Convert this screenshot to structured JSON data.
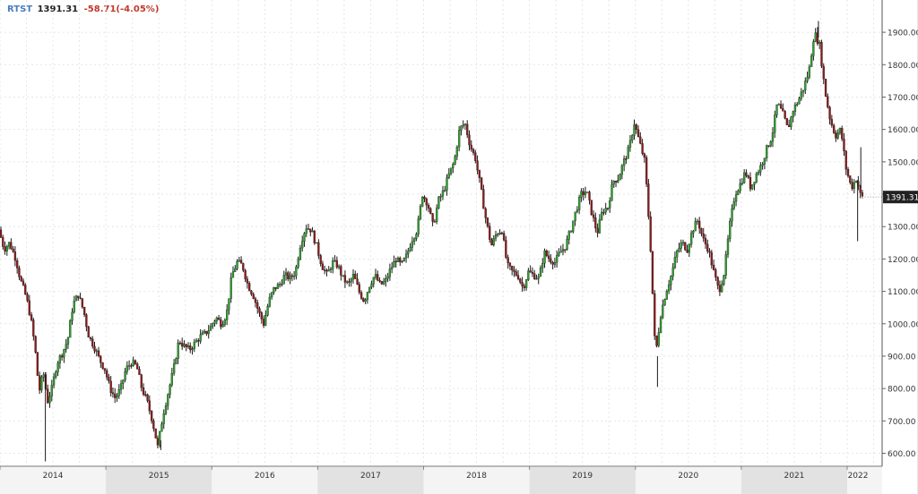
{
  "header": {
    "ticker": "RTST",
    "last_price": "1391.31",
    "change": "-58.71",
    "change_percent": "(-4.05%)"
  },
  "price_tag": "1391.31",
  "colors": {
    "up": "#2e9e2e",
    "down": "#8b1a1a",
    "ticker": "#4a7cc0",
    "change": "#c0392b",
    "grid": "#e6e6e6",
    "axis_text": "#333333",
    "year_band": "#e2e2e2",
    "tag_bg": "#222222"
  },
  "chart_data": {
    "type": "candlestick",
    "title": "",
    "grid": true,
    "y_axis_position": "right",
    "ylim": [
      560,
      1950
    ],
    "y_ticks": [
      "600.00",
      "700.00",
      "800.00",
      "900.00",
      "1000.00",
      "1100.00",
      "1200.00",
      "1300.00",
      "1400.00",
      "1500.00",
      "1600.00",
      "1700.00",
      "1800.00",
      "1900.00"
    ],
    "x_start": 2014.0,
    "x_end": 2022.33,
    "x_ticks": [
      "2014",
      "2015",
      "2016",
      "2017",
      "2018",
      "2019",
      "2020",
      "2021",
      "2022"
    ],
    "anchors": [
      [
        2014.0,
        1290
      ],
      [
        2014.05,
        1230
      ],
      [
        2014.1,
        1250
      ],
      [
        2014.16,
        1200
      ],
      [
        2014.2,
        1140
      ],
      [
        2014.26,
        1080
      ],
      [
        2014.3,
        1020
      ],
      [
        2014.34,
        930
      ],
      [
        2014.38,
        790
      ],
      [
        2014.42,
        850
      ],
      [
        2014.46,
        760
      ],
      [
        2014.5,
        800
      ],
      [
        2014.55,
        880
      ],
      [
        2014.6,
        910
      ],
      [
        2014.65,
        950
      ],
      [
        2014.7,
        1060
      ],
      [
        2014.75,
        1090
      ],
      [
        2014.8,
        1040
      ],
      [
        2014.85,
        960
      ],
      [
        2014.9,
        930
      ],
      [
        2014.95,
        890
      ],
      [
        2015.0,
        860
      ],
      [
        2015.05,
        800
      ],
      [
        2015.1,
        770
      ],
      [
        2015.15,
        800
      ],
      [
        2015.2,
        860
      ],
      [
        2015.25,
        880
      ],
      [
        2015.3,
        870
      ],
      [
        2015.35,
        800
      ],
      [
        2015.4,
        760
      ],
      [
        2015.45,
        700
      ],
      [
        2015.5,
        620
      ],
      [
        2015.55,
        720
      ],
      [
        2015.6,
        790
      ],
      [
        2015.65,
        860
      ],
      [
        2015.7,
        950
      ],
      [
        2015.75,
        930
      ],
      [
        2015.8,
        920
      ],
      [
        2015.85,
        940
      ],
      [
        2015.9,
        960
      ],
      [
        2015.95,
        970
      ],
      [
        2016.0,
        990
      ],
      [
        2016.05,
        1020
      ],
      [
        2016.1,
        1000
      ],
      [
        2016.15,
        1030
      ],
      [
        2016.2,
        1150
      ],
      [
        2016.25,
        1190
      ],
      [
        2016.3,
        1180
      ],
      [
        2016.35,
        1120
      ],
      [
        2016.4,
        1090
      ],
      [
        2016.45,
        1040
      ],
      [
        2016.5,
        1000
      ],
      [
        2016.55,
        1070
      ],
      [
        2016.6,
        1110
      ],
      [
        2016.65,
        1120
      ],
      [
        2016.7,
        1150
      ],
      [
        2016.75,
        1140
      ],
      [
        2016.8,
        1160
      ],
      [
        2016.85,
        1250
      ],
      [
        2016.9,
        1300
      ],
      [
        2016.95,
        1290
      ],
      [
        2017.0,
        1240
      ],
      [
        2017.05,
        1180
      ],
      [
        2017.1,
        1150
      ],
      [
        2017.15,
        1190
      ],
      [
        2017.2,
        1180
      ],
      [
        2017.25,
        1140
      ],
      [
        2017.3,
        1120
      ],
      [
        2017.35,
        1150
      ],
      [
        2017.4,
        1100
      ],
      [
        2017.45,
        1070
      ],
      [
        2017.5,
        1120
      ],
      [
        2017.55,
        1150
      ],
      [
        2017.6,
        1120
      ],
      [
        2017.65,
        1130
      ],
      [
        2017.7,
        1170
      ],
      [
        2017.75,
        1200
      ],
      [
        2017.8,
        1180
      ],
      [
        2017.85,
        1210
      ],
      [
        2017.9,
        1260
      ],
      [
        2017.95,
        1290
      ],
      [
        2018.0,
        1400
      ],
      [
        2018.05,
        1370
      ],
      [
        2018.1,
        1300
      ],
      [
        2018.15,
        1380
      ],
      [
        2018.2,
        1410
      ],
      [
        2018.25,
        1460
      ],
      [
        2018.3,
        1500
      ],
      [
        2018.35,
        1600
      ],
      [
        2018.4,
        1620
      ],
      [
        2018.45,
        1550
      ],
      [
        2018.5,
        1510
      ],
      [
        2018.55,
        1420
      ],
      [
        2018.6,
        1320
      ],
      [
        2018.65,
        1240
      ],
      [
        2018.7,
        1280
      ],
      [
        2018.75,
        1290
      ],
      [
        2018.8,
        1180
      ],
      [
        2018.85,
        1160
      ],
      [
        2018.9,
        1150
      ],
      [
        2018.95,
        1110
      ],
      [
        2019.0,
        1160
      ],
      [
        2019.05,
        1150
      ],
      [
        2019.1,
        1140
      ],
      [
        2019.15,
        1220
      ],
      [
        2019.2,
        1200
      ],
      [
        2019.25,
        1190
      ],
      [
        2019.3,
        1220
      ],
      [
        2019.35,
        1240
      ],
      [
        2019.4,
        1290
      ],
      [
        2019.45,
        1350
      ],
      [
        2019.5,
        1400
      ],
      [
        2019.55,
        1410
      ],
      [
        2019.6,
        1340
      ],
      [
        2019.65,
        1280
      ],
      [
        2019.7,
        1350
      ],
      [
        2019.75,
        1360
      ],
      [
        2019.8,
        1440
      ],
      [
        2019.85,
        1450
      ],
      [
        2019.9,
        1500
      ],
      [
        2019.95,
        1540
      ],
      [
        2020.0,
        1620
      ],
      [
        2020.05,
        1560
      ],
      [
        2020.1,
        1500
      ],
      [
        2020.15,
        1260
      ],
      [
        2020.2,
        900
      ],
      [
        2020.25,
        1030
      ],
      [
        2020.3,
        1100
      ],
      [
        2020.35,
        1150
      ],
      [
        2020.4,
        1220
      ],
      [
        2020.45,
        1250
      ],
      [
        2020.5,
        1230
      ],
      [
        2020.55,
        1290
      ],
      [
        2020.6,
        1320
      ],
      [
        2020.65,
        1260
      ],
      [
        2020.7,
        1230
      ],
      [
        2020.75,
        1160
      ],
      [
        2020.8,
        1100
      ],
      [
        2020.85,
        1160
      ],
      [
        2020.9,
        1300
      ],
      [
        2020.95,
        1400
      ],
      [
        2021.0,
        1430
      ],
      [
        2021.05,
        1470
      ],
      [
        2021.1,
        1420
      ],
      [
        2021.15,
        1460
      ],
      [
        2021.2,
        1490
      ],
      [
        2021.25,
        1540
      ],
      [
        2021.3,
        1580
      ],
      [
        2021.35,
        1680
      ],
      [
        2021.4,
        1650
      ],
      [
        2021.45,
        1600
      ],
      [
        2021.5,
        1660
      ],
      [
        2021.55,
        1690
      ],
      [
        2021.6,
        1730
      ],
      [
        2021.65,
        1780
      ],
      [
        2021.7,
        1900
      ],
      [
        2021.75,
        1860
      ],
      [
        2021.8,
        1720
      ],
      [
        2021.85,
        1630
      ],
      [
        2021.9,
        1580
      ],
      [
        2021.95,
        1600
      ],
      [
        2022.0,
        1480
      ],
      [
        2022.05,
        1420
      ],
      [
        2022.1,
        1450
      ],
      [
        2022.14,
        1391
      ]
    ],
    "extreme_wicks": [
      {
        "x": 2014.42,
        "low": 575
      },
      {
        "x": 2015.51,
        "low": 610
      },
      {
        "x": 2020.2,
        "low": 805
      },
      {
        "x": 2021.72,
        "high": 1935
      },
      {
        "x": 2022.09,
        "low": 1255
      },
      {
        "x": 2022.12,
        "high": 1545
      }
    ]
  }
}
